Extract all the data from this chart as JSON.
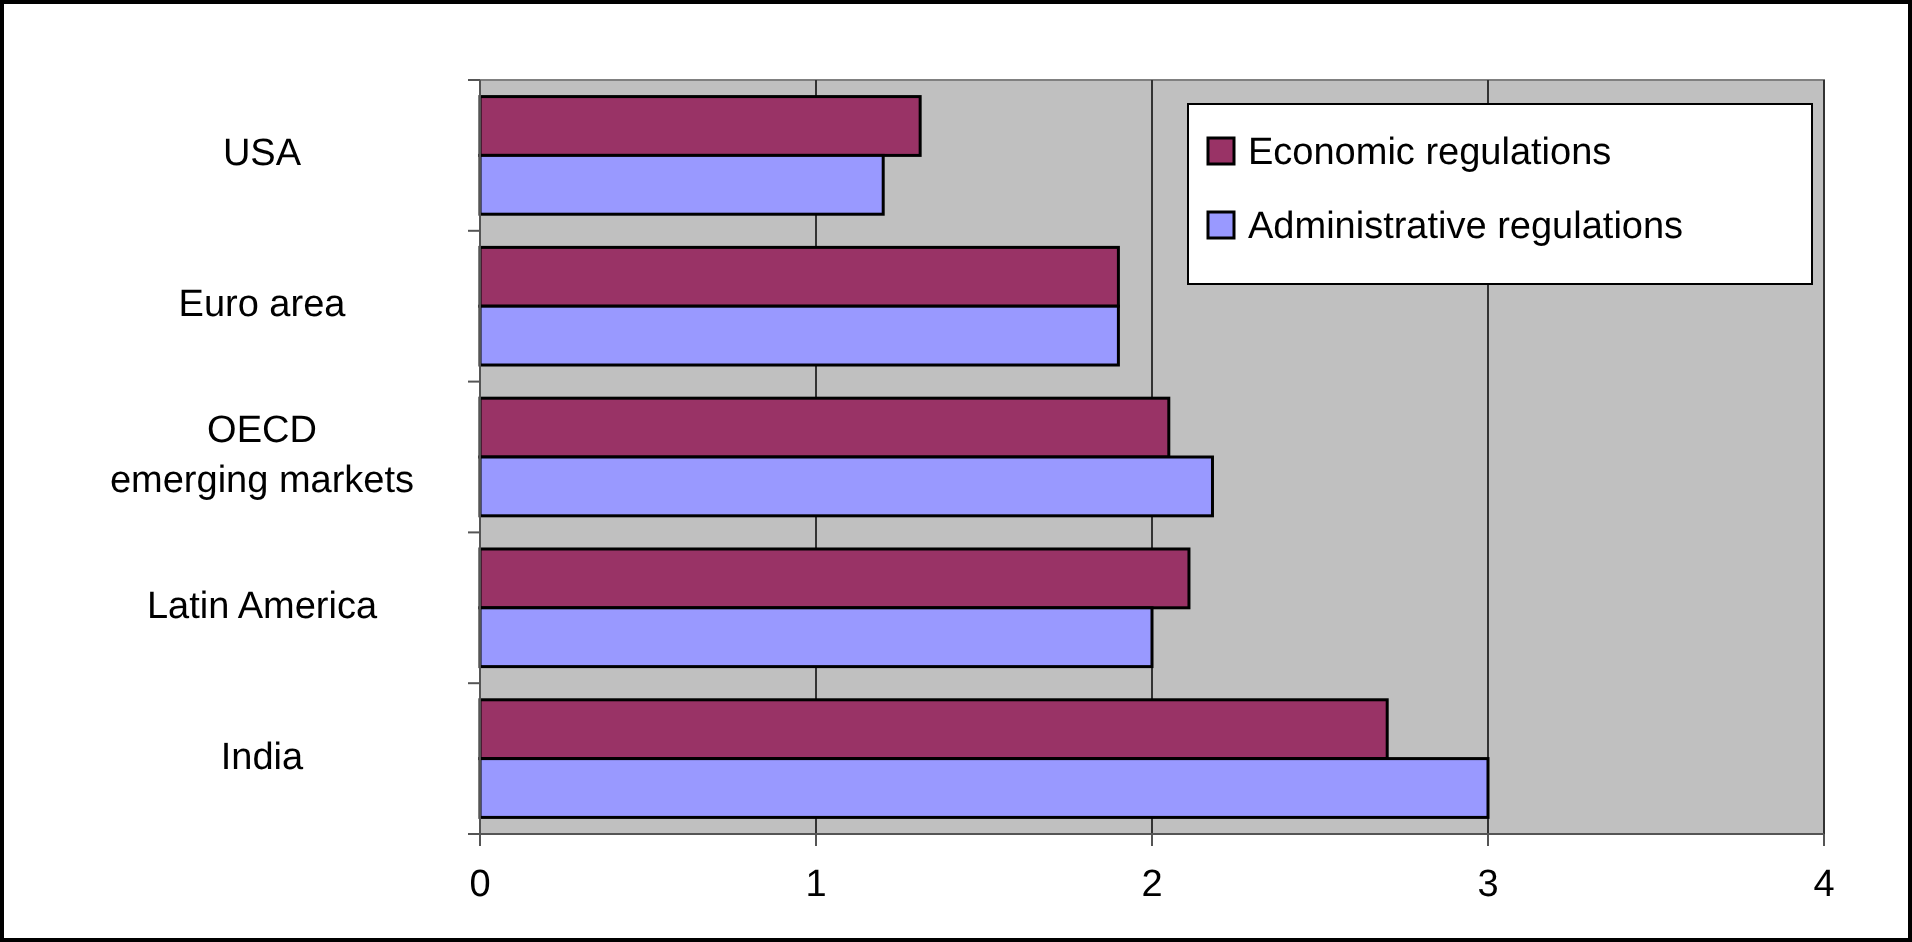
{
  "chart_data": {
    "type": "bar",
    "orientation": "horizontal",
    "categories": [
      "USA",
      "Euro area",
      "OECD\nemerging markets",
      "Latin America",
      "India"
    ],
    "series": [
      {
        "name": "Economic regulations",
        "color": "#993366",
        "values": [
          1.31,
          1.9,
          2.05,
          2.11,
          2.7
        ]
      },
      {
        "name": "Administrative regulations",
        "color": "#9999ff",
        "values": [
          1.2,
          1.9,
          2.18,
          2.0,
          3.0
        ]
      }
    ],
    "xlim": [
      0,
      4
    ],
    "xticks": [
      0,
      1,
      2,
      3,
      4
    ],
    "grid": "x",
    "legend": "top right"
  }
}
